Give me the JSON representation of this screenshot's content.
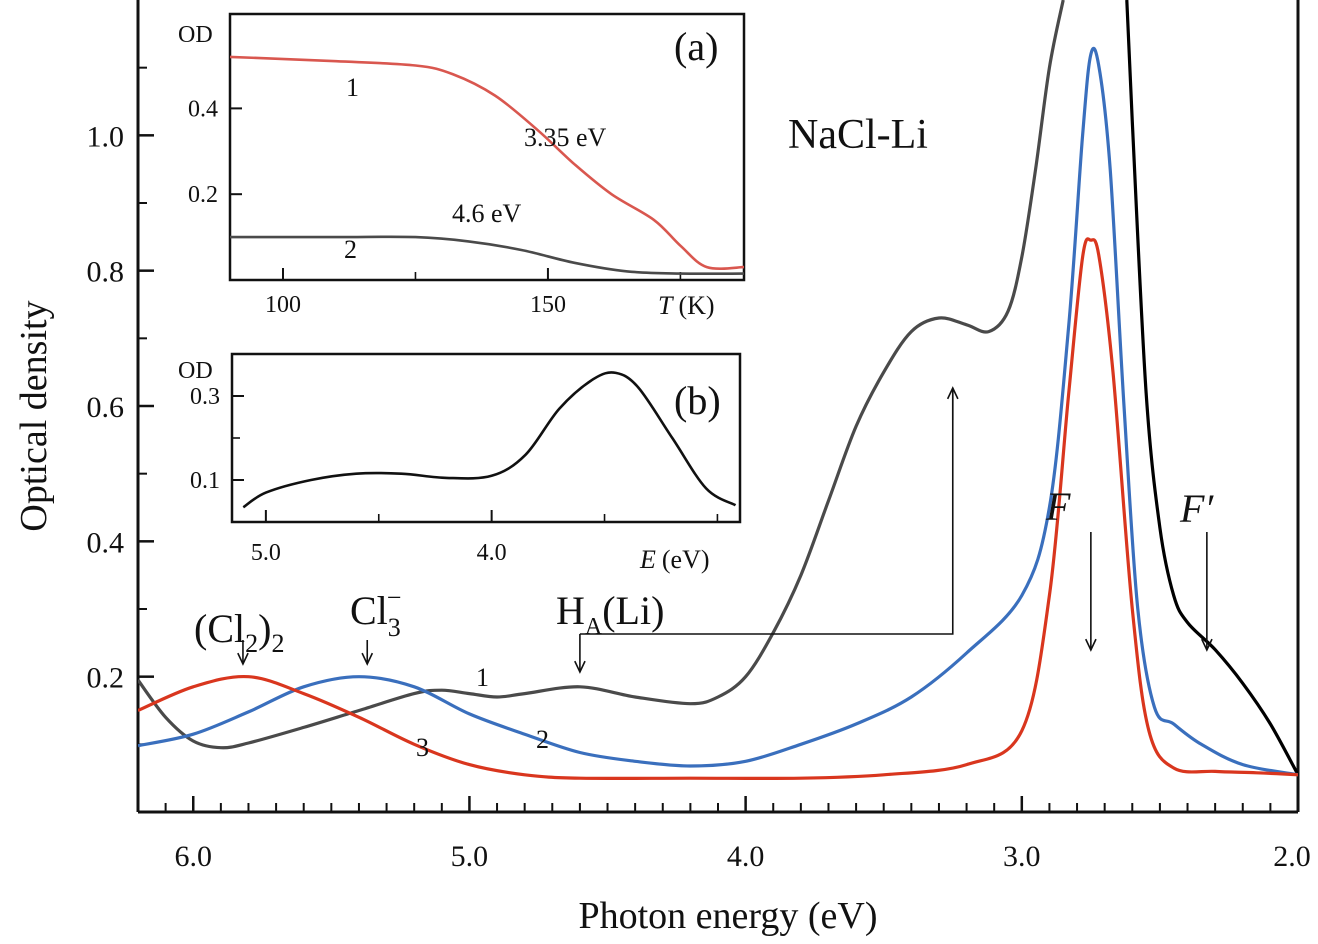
{
  "chart_data": [
    {
      "id": "main",
      "type": "line",
      "xlabel": "Photon energy (eV)",
      "ylabel": "Optical density",
      "title": "NaCl-Li",
      "xlim": [
        6.2,
        2.0
      ],
      "ylim": [
        0.0,
        1.2
      ],
      "x_reversed": true,
      "xticks": [
        "6.0",
        "5.0",
        "4.0",
        "3.0",
        "2.0"
      ],
      "yticks": [
        "0.2",
        "0.4",
        "0.6",
        "0.8",
        "1.0"
      ],
      "series": [
        {
          "name": "1",
          "color": "#4a4a4a",
          "points": [
            [
              6.2,
              0.195
            ],
            [
              6.1,
              0.14
            ],
            [
              6.0,
              0.105
            ],
            [
              5.9,
              0.095
            ],
            [
              5.8,
              0.102
            ],
            [
              5.6,
              0.125
            ],
            [
              5.4,
              0.15
            ],
            [
              5.2,
              0.175
            ],
            [
              5.1,
              0.18
            ],
            [
              5.0,
              0.175
            ],
            [
              4.9,
              0.17
            ],
            [
              4.8,
              0.175
            ],
            [
              4.6,
              0.185
            ],
            [
              4.4,
              0.17
            ],
            [
              4.2,
              0.16
            ],
            [
              4.1,
              0.17
            ],
            [
              4.0,
              0.2
            ],
            [
              3.9,
              0.265
            ],
            [
              3.8,
              0.35
            ],
            [
              3.7,
              0.46
            ],
            [
              3.6,
              0.57
            ],
            [
              3.5,
              0.65
            ],
            [
              3.4,
              0.71
            ],
            [
              3.3,
              0.73
            ],
            [
              3.2,
              0.72
            ],
            [
              3.12,
              0.71
            ],
            [
              3.05,
              0.74
            ],
            [
              3.0,
              0.82
            ],
            [
              2.95,
              0.95
            ],
            [
              2.9,
              1.1
            ],
            [
              2.85,
              1.2
            ]
          ]
        },
        {
          "name": "",
          "color": "#000000",
          "points": [
            [
              2.62,
              1.2
            ],
            [
              2.6,
              1.02
            ],
            [
              2.55,
              0.62
            ],
            [
              2.5,
              0.42
            ],
            [
              2.45,
              0.32
            ],
            [
              2.4,
              0.28
            ],
            [
              2.3,
              0.24
            ],
            [
              2.2,
              0.19
            ],
            [
              2.1,
              0.13
            ],
            [
              2.0,
              0.055
            ]
          ]
        },
        {
          "name": "2",
          "color": "#3a6fbd",
          "points": [
            [
              6.2,
              0.098
            ],
            [
              6.0,
              0.115
            ],
            [
              5.8,
              0.148
            ],
            [
              5.6,
              0.185
            ],
            [
              5.4,
              0.2
            ],
            [
              5.2,
              0.185
            ],
            [
              5.0,
              0.145
            ],
            [
              4.8,
              0.115
            ],
            [
              4.6,
              0.088
            ],
            [
              4.4,
              0.075
            ],
            [
              4.2,
              0.068
            ],
            [
              4.0,
              0.075
            ],
            [
              3.8,
              0.1
            ],
            [
              3.6,
              0.13
            ],
            [
              3.4,
              0.17
            ],
            [
              3.2,
              0.235
            ],
            [
              3.0,
              0.32
            ],
            [
              2.9,
              0.45
            ],
            [
              2.83,
              0.72
            ],
            [
              2.78,
              1.0
            ],
            [
              2.75,
              1.12
            ],
            [
              2.72,
              1.1
            ],
            [
              2.68,
              0.95
            ],
            [
              2.63,
              0.6
            ],
            [
              2.58,
              0.3
            ],
            [
              2.52,
              0.155
            ],
            [
              2.45,
              0.13
            ],
            [
              2.35,
              0.1
            ],
            [
              2.2,
              0.07
            ],
            [
              2.0,
              0.055
            ]
          ]
        },
        {
          "name": "3",
          "color": "#d9361e",
          "points": [
            [
              6.2,
              0.15
            ],
            [
              6.0,
              0.185
            ],
            [
              5.8,
              0.2
            ],
            [
              5.6,
              0.175
            ],
            [
              5.4,
              0.14
            ],
            [
              5.2,
              0.1
            ],
            [
              5.0,
              0.07
            ],
            [
              4.8,
              0.055
            ],
            [
              4.6,
              0.05
            ],
            [
              4.2,
              0.05
            ],
            [
              3.8,
              0.05
            ],
            [
              3.5,
              0.055
            ],
            [
              3.2,
              0.07
            ],
            [
              3.0,
              0.12
            ],
            [
              2.9,
              0.32
            ],
            [
              2.83,
              0.62
            ],
            [
              2.78,
              0.82
            ],
            [
              2.75,
              0.845
            ],
            [
              2.72,
              0.82
            ],
            [
              2.67,
              0.65
            ],
            [
              2.6,
              0.3
            ],
            [
              2.54,
              0.12
            ],
            [
              2.45,
              0.065
            ],
            [
              2.3,
              0.06
            ],
            [
              2.15,
              0.058
            ],
            [
              2.0,
              0.055
            ]
          ]
        }
      ],
      "annotations": [
        {
          "label": "(Cl",
          "sub": "2",
          "sub2": "2",
          "x": 5.82,
          "arrow_to": 5.82
        },
        {
          "label": "Cl",
          "sub": "3",
          "sup": "−",
          "x": 5.37,
          "arrow_to": 5.37
        },
        {
          "label": "H",
          "sub": "A",
          "tail": "(Li)",
          "x": 4.6,
          "arrow_to": 4.6
        },
        {
          "label": "F",
          "x": 2.75,
          "arrow_to": 2.75
        },
        {
          "label": "F",
          "prime": "′",
          "x": 2.33,
          "arrow_to": 2.33
        }
      ]
    },
    {
      "id": "inset-a",
      "panel": "(a)",
      "type": "line",
      "xlabel": "T",
      "xunit": "(K)",
      "ylabel": "OD",
      "xlim": [
        90,
        187
      ],
      "ylim": [
        0.0,
        0.62
      ],
      "xticks": [
        "100",
        "150"
      ],
      "yticks": [
        "0.2",
        "0.4"
      ],
      "series": [
        {
          "name": "1",
          "label": "3.35 eV",
          "color": "#d9574f",
          "points": [
            [
              90,
              0.52
            ],
            [
              110,
              0.51
            ],
            [
              125,
              0.5
            ],
            [
              132,
              0.48
            ],
            [
              140,
              0.43
            ],
            [
              148,
              0.35
            ],
            [
              155,
              0.27
            ],
            [
              162,
              0.2
            ],
            [
              170,
              0.14
            ],
            [
              175,
              0.08
            ],
            [
              180,
              0.03
            ],
            [
              187,
              0.03
            ]
          ]
        },
        {
          "name": "2",
          "label": "4.6 eV",
          "color": "#4a4a4a",
          "points": [
            [
              90,
              0.1
            ],
            [
              110,
              0.1
            ],
            [
              125,
              0.1
            ],
            [
              135,
              0.09
            ],
            [
              145,
              0.07
            ],
            [
              155,
              0.04
            ],
            [
              165,
              0.02
            ],
            [
              175,
              0.015
            ],
            [
              187,
              0.015
            ]
          ]
        }
      ]
    },
    {
      "id": "inset-b",
      "panel": "(b)",
      "type": "line",
      "xlabel": "E",
      "xunit": "(eV)",
      "ylabel": "OD",
      "xlim": [
        5.15,
        2.9
      ],
      "ylim": [
        0.0,
        0.4
      ],
      "x_reversed": true,
      "xticks": [
        "5.0",
        "4.0"
      ],
      "yticks": [
        "0.1",
        "0.3"
      ],
      "series": [
        {
          "name": "",
          "color": "#111111",
          "points": [
            [
              5.1,
              0.035
            ],
            [
              5.0,
              0.07
            ],
            [
              4.8,
              0.1
            ],
            [
              4.6,
              0.115
            ],
            [
              4.4,
              0.115
            ],
            [
              4.2,
              0.105
            ],
            [
              4.0,
              0.11
            ],
            [
              3.85,
              0.16
            ],
            [
              3.7,
              0.27
            ],
            [
              3.55,
              0.34
            ],
            [
              3.45,
              0.355
            ],
            [
              3.35,
              0.32
            ],
            [
              3.2,
              0.2
            ],
            [
              3.05,
              0.08
            ],
            [
              2.92,
              0.04
            ]
          ]
        }
      ]
    }
  ]
}
